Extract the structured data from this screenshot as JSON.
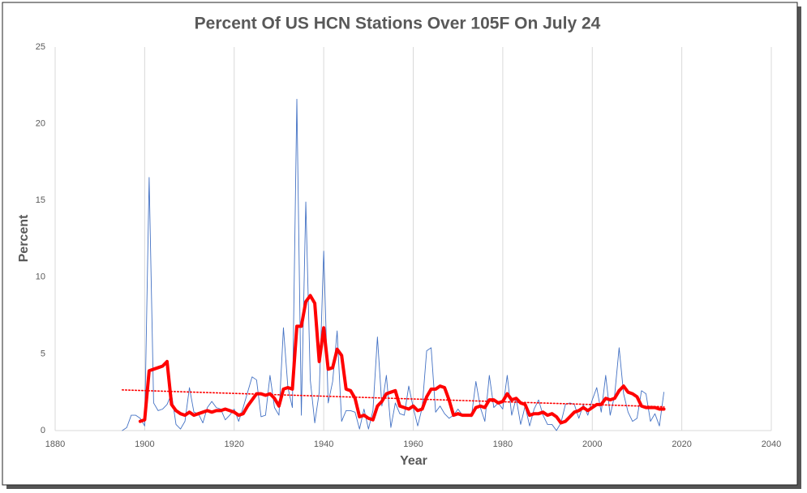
{
  "chart_data": {
    "type": "line",
    "title": "Percent Of US HCN Stations Over 105F On July 24",
    "xlabel": "Year",
    "ylabel": "Percent",
    "xlim": [
      1880,
      2040
    ],
    "xticks": [
      1880,
      1900,
      1920,
      1940,
      1960,
      1980,
      2000,
      2020,
      2040
    ],
    "ylim": [
      0,
      25
    ],
    "yticks": [
      0,
      5,
      10,
      15,
      20,
      25
    ],
    "grid": "x",
    "series": [
      {
        "color": "#4472c4",
        "style": "thin",
        "x": [
          1895,
          1896,
          1897,
          1898,
          1899,
          1900,
          1901,
          1902,
          1903,
          1904,
          1905,
          1906,
          1907,
          1908,
          1909,
          1910,
          1911,
          1912,
          1913,
          1914,
          1915,
          1916,
          1917,
          1918,
          1919,
          1920,
          1921,
          1922,
          1923,
          1924,
          1925,
          1926,
          1927,
          1928,
          1929,
          1930,
          1931,
          1932,
          1933,
          1934,
          1935,
          1936,
          1937,
          1938,
          1939,
          1940,
          1941,
          1942,
          1943,
          1944,
          1945,
          1946,
          1947,
          1948,
          1949,
          1950,
          1951,
          1952,
          1953,
          1954,
          1955,
          1956,
          1957,
          1958,
          1959,
          1960,
          1961,
          1962,
          1963,
          1964,
          1965,
          1966,
          1967,
          1968,
          1969,
          1970,
          1971,
          1972,
          1973,
          1974,
          1975,
          1976,
          1977,
          1978,
          1979,
          1980,
          1981,
          1982,
          1983,
          1984,
          1985,
          1986,
          1987,
          1988,
          1989,
          1990,
          1991,
          1992,
          1993,
          1994,
          1995,
          1996,
          1997,
          1998,
          1999,
          2000,
          2001,
          2002,
          2003,
          2004,
          2005,
          2006,
          2007,
          2008,
          2009,
          2010,
          2011,
          2012,
          2013,
          2014,
          2015,
          2016
        ],
        "values": [
          0,
          0.2,
          1.0,
          1.0,
          0.8,
          0.3,
          16.5,
          1.8,
          1.3,
          1.4,
          1.7,
          2.4,
          0.4,
          0.1,
          0.6,
          2.8,
          1.2,
          1.1,
          0.5,
          1.5,
          1.9,
          1.5,
          1.4,
          0.7,
          1.0,
          1.4,
          0.6,
          1.5,
          2.5,
          3.5,
          3.3,
          0.9,
          1.0,
          3.6,
          1.5,
          1.0,
          6.7,
          2.8,
          1.5,
          21.6,
          1.0,
          14.9,
          3.3,
          0.5,
          2.5,
          11.7,
          1.8,
          3.2,
          6.5,
          0.6,
          1.3,
          1.3,
          1.2,
          0.1,
          1.4,
          0.1,
          1.3,
          6.1,
          1.6,
          3.6,
          0.2,
          1.8,
          1.1,
          1.0,
          2.9,
          1.5,
          0.3,
          1.5,
          5.2,
          5.4,
          1.2,
          1.6,
          1.1,
          0.8,
          1.0,
          1.4,
          1.0,
          1.0,
          0.9,
          3.2,
          1.5,
          0.6,
          3.6,
          1.5,
          1.8,
          1.4,
          3.6,
          1.0,
          2.1,
          0.4,
          1.6,
          0.3,
          1.4,
          2.0,
          1.0,
          0.4,
          0.4,
          0,
          0.5,
          1.7,
          1.8,
          1.7,
          0.8,
          1.7,
          1.0,
          2.0,
          2.8,
          1.2,
          3.6,
          1.0,
          2.3,
          5.4,
          2.4,
          1.2,
          0.6,
          0.8,
          2.6,
          2.4,
          0.6,
          1.1,
          0.3,
          2.5
        ]
      },
      {
        "color": "#ff0000",
        "style": "thick",
        "x": [
          1899,
          1900,
          1901,
          1902,
          1903,
          1904,
          1905,
          1906,
          1907,
          1908,
          1909,
          1910,
          1911,
          1912,
          1913,
          1914,
          1915,
          1916,
          1917,
          1918,
          1919,
          1920,
          1921,
          1922,
          1923,
          1924,
          1925,
          1926,
          1927,
          1928,
          1929,
          1930,
          1931,
          1932,
          1933,
          1934,
          1935,
          1936,
          1937,
          1938,
          1939,
          1940,
          1941,
          1942,
          1943,
          1944,
          1945,
          1946,
          1947,
          1948,
          1949,
          1950,
          1951,
          1952,
          1953,
          1954,
          1955,
          1956,
          1957,
          1958,
          1959,
          1960,
          1961,
          1962,
          1963,
          1964,
          1965,
          1966,
          1967,
          1968,
          1969,
          1970,
          1971,
          1972,
          1973,
          1974,
          1975,
          1976,
          1977,
          1978,
          1979,
          1980,
          1981,
          1982,
          1983,
          1984,
          1985,
          1986,
          1987,
          1988,
          1989,
          1990,
          1991,
          1992,
          1993,
          1994,
          1995,
          1996,
          1997,
          1998,
          1999,
          2000,
          2001,
          2002,
          2003,
          2004,
          2005,
          2006,
          2007,
          2008,
          2009,
          2010,
          2011,
          2012,
          2013,
          2014,
          2015,
          2016
        ],
        "values": [
          0.6,
          0.7,
          3.9,
          4.0,
          4.1,
          4.2,
          4.5,
          1.7,
          1.3,
          1.1,
          1.0,
          1.2,
          1.0,
          1.1,
          1.2,
          1.3,
          1.2,
          1.3,
          1.3,
          1.4,
          1.3,
          1.2,
          1.0,
          1.1,
          1.6,
          2.0,
          2.4,
          2.4,
          2.3,
          2.4,
          2.1,
          1.6,
          2.7,
          2.8,
          2.7,
          6.8,
          6.8,
          8.4,
          8.8,
          8.3,
          4.5,
          6.7,
          4.0,
          4.1,
          5.3,
          4.9,
          2.7,
          2.6,
          2.1,
          0.9,
          1.0,
          0.8,
          0.7,
          1.6,
          1.9,
          2.4,
          2.5,
          2.6,
          1.6,
          1.5,
          1.4,
          1.6,
          1.3,
          1.4,
          2.2,
          2.7,
          2.7,
          2.9,
          2.8,
          2.0,
          1.0,
          1.1,
          1.0,
          1.0,
          1.0,
          1.5,
          1.6,
          1.5,
          2.0,
          2.0,
          1.8,
          1.9,
          2.4,
          2.0,
          2.1,
          1.8,
          1.7,
          1.0,
          1.1,
          1.1,
          1.2,
          1.0,
          1.1,
          0.9,
          0.5,
          0.6,
          0.9,
          1.2,
          1.3,
          1.5,
          1.3,
          1.5,
          1.7,
          1.7,
          2.1,
          2.0,
          2.1,
          2.6,
          2.9,
          2.5,
          2.4,
          2.2,
          1.6,
          1.5,
          1.5,
          1.5,
          1.4,
          1.4
        ]
      },
      {
        "color": "#ff0000",
        "style": "dotted",
        "x": [
          1895,
          2016
        ],
        "values": [
          2.65,
          1.55
        ]
      }
    ]
  }
}
